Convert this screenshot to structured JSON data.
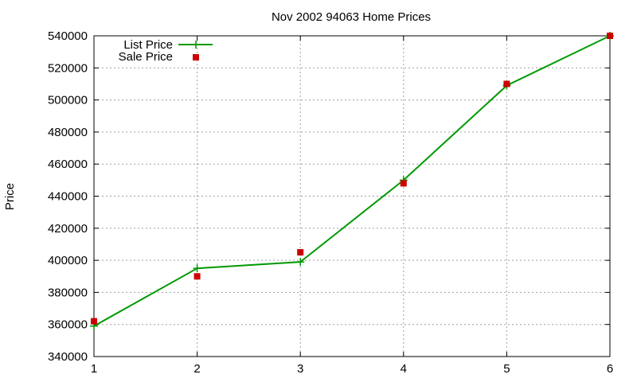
{
  "chart_data": {
    "type": "line",
    "title": "Nov 2002 94063 Home Prices",
    "xlabel": "",
    "ylabel": "Price",
    "x": [
      1,
      2,
      3,
      4,
      5,
      6
    ],
    "xlim": [
      1,
      6
    ],
    "ylim": [
      340000,
      540000
    ],
    "xticks": [
      1,
      2,
      3,
      4,
      5,
      6
    ],
    "yticks": [
      340000,
      360000,
      380000,
      400000,
      420000,
      440000,
      460000,
      480000,
      500000,
      520000,
      540000
    ],
    "grid": true,
    "legend_position": "top-left",
    "series": [
      {
        "name": "List Price",
        "style": "line+cross",
        "color": "#009900",
        "values": [
          359000,
          395000,
          399000,
          450000,
          509000,
          540000
        ]
      },
      {
        "name": "Sale Price",
        "style": "square-points",
        "color": "#cc0000",
        "values": [
          362000,
          390000,
          405000,
          448000,
          510000,
          540000
        ]
      }
    ]
  }
}
